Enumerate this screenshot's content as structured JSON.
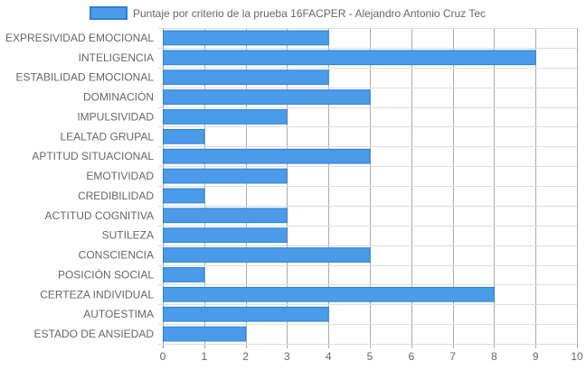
{
  "chart_data": {
    "type": "bar",
    "orientation": "horizontal",
    "legend_position": "top",
    "grid": true,
    "xlim": [
      0,
      10
    ],
    "x_ticks": [
      "0",
      "1",
      "2",
      "3",
      "4",
      "5",
      "6",
      "7",
      "8",
      "9",
      "10"
    ],
    "categories": [
      "EXPRESIVIDAD EMOCIONAL",
      "INTELIGENCIA",
      "ESTABILIDAD EMOCIONAL",
      "DOMINACIÓN",
      "IMPULSIVIDAD",
      "LEALTAD GRUPAL",
      "APTITUD SITUACIONAL",
      "EMOTIVIDAD",
      "CREDIBILIDAD",
      "ACTITUD COGNITIVA",
      "SUTILEZA",
      "CONSCIENCIA",
      "POSICIÓN SOCIAL",
      "CERTEZA INDIVIDUAL",
      "AUTOESTIMA",
      "ESTADO DE ANSIEDAD"
    ],
    "series": [
      {
        "name": "Puntaje por criterio de la prueba 16FACPER - Alejandro Antonio Cruz Tec",
        "values": [
          4,
          9,
          4,
          5,
          3,
          1,
          5,
          3,
          1,
          3,
          3,
          5,
          1,
          8,
          4,
          2
        ]
      }
    ],
    "colors": {
      "bar_fill": "#4c9be8",
      "bar_stroke": "#2a7fd4",
      "grid": "#dddddd",
      "grid_dark": "#999999",
      "text": "#666666"
    }
  }
}
